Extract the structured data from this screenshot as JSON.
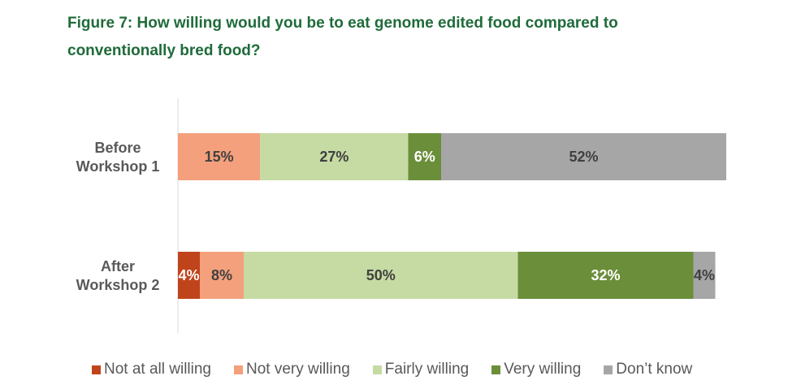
{
  "chart_data": {
    "type": "bar",
    "orientation": "horizontal",
    "stacked": true,
    "title": "Figure 7: How willing would you be to eat genome edited food compared to conventionally bred food?",
    "categories": [
      "Before Workshop 1",
      "After Workshop 2"
    ],
    "category_lines": [
      [
        "Before",
        "Workshop 1"
      ],
      [
        "After",
        "Workshop 2"
      ]
    ],
    "series": [
      {
        "name": "Not at all willing",
        "color": "#c0441b",
        "label_color": "#ffffff",
        "values": [
          0,
          4
        ]
      },
      {
        "name": "Not very willing",
        "color": "#f4a07c",
        "label_color": "#404040",
        "values": [
          15,
          8
        ]
      },
      {
        "name": "Fairly willing",
        "color": "#c5dba3",
        "label_color": "#404040",
        "values": [
          27,
          50
        ]
      },
      {
        "name": "Very willing",
        "color": "#6b8e3a",
        "label_color": "#ffffff",
        "values": [
          6,
          32
        ]
      },
      {
        "name": "Don’t know",
        "color": "#a6a6a6",
        "label_color": "#404040",
        "values": [
          52,
          4
        ]
      }
    ],
    "xlim": [
      0,
      100
    ],
    "value_suffix": "%",
    "legend_position": "bottom"
  }
}
